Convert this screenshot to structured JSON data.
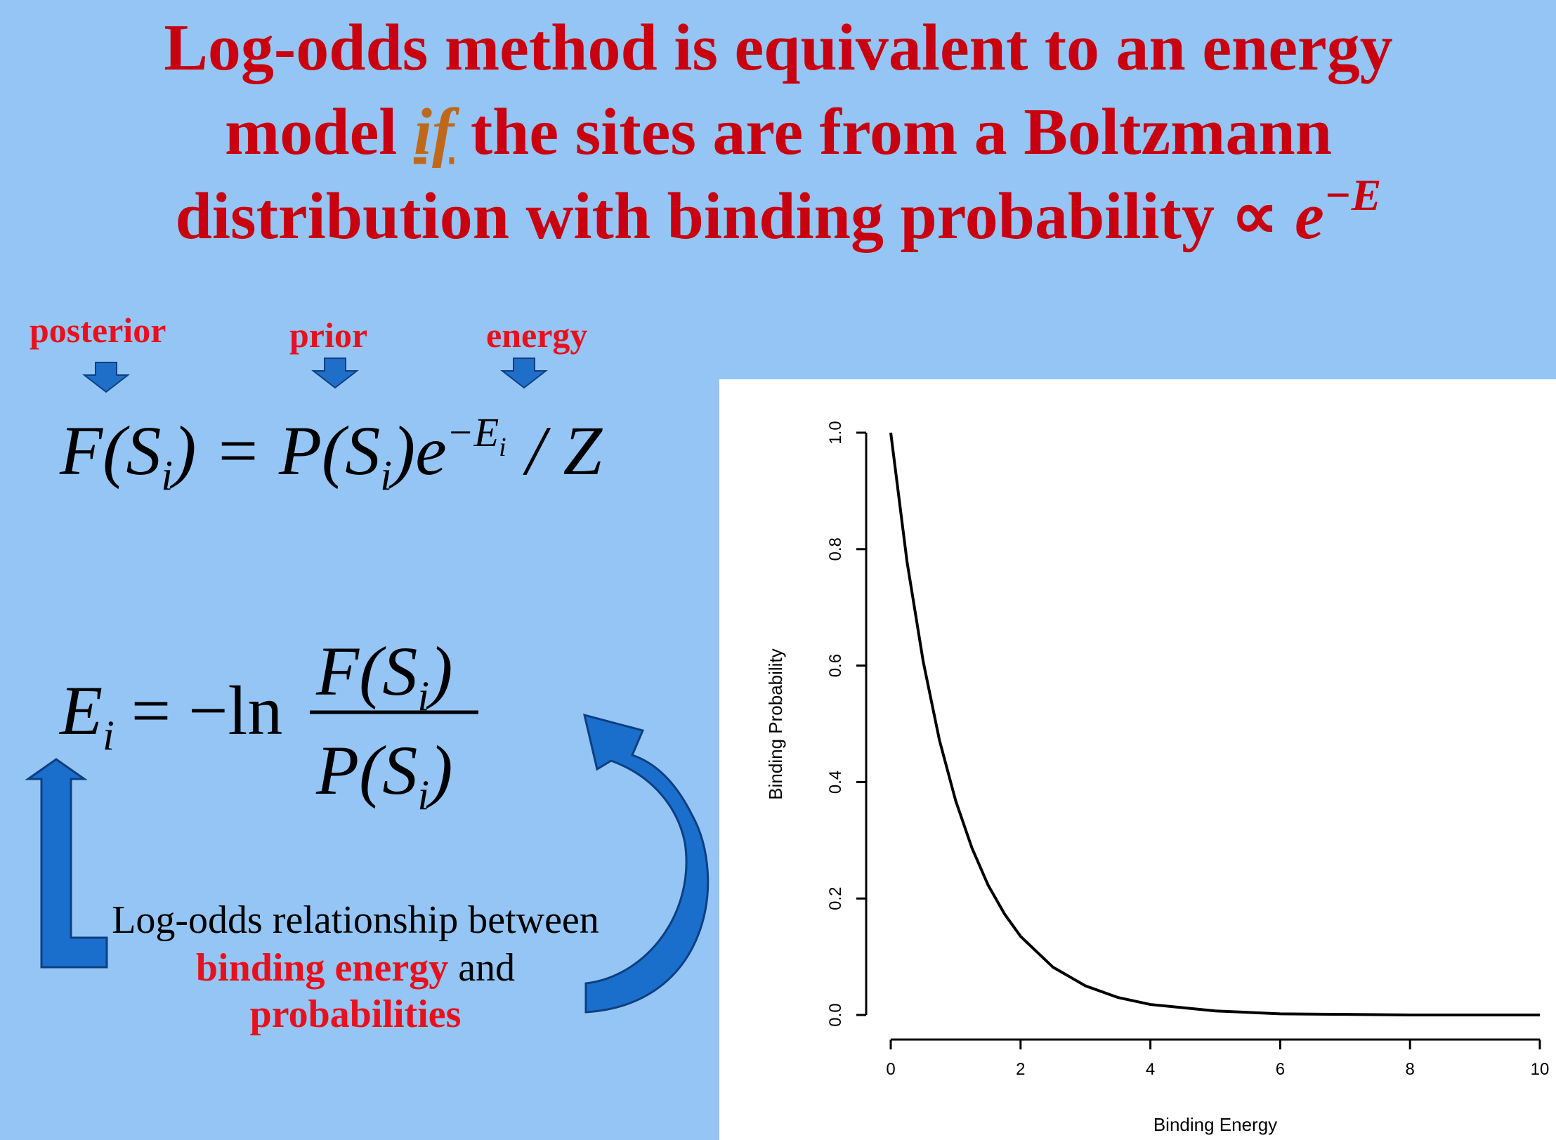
{
  "header": {
    "line1": "Log-odds method is equivalent to an energy",
    "line2_start": "model",
    "if": "if",
    "line2_end": "the sites are from a Boltzmann",
    "line3": "distribution with binding probability ∝",
    "e": "e",
    "sup": "−E"
  },
  "labels": {
    "posterior": "posterior",
    "prior": "prior",
    "energy": "energy"
  },
  "equation1": {
    "lhs": "F(S",
    "lhs_sub": "i",
    "mid": ") = P(S",
    "mid_sub": "i",
    "exp_base": ")e",
    "exp": "−E",
    "exp_sub": "i",
    "tail": "/ Z"
  },
  "equation2": {
    "lhs": "E",
    "lhs_sub": "i",
    "op": "= −ln",
    "num": "F(S",
    "num_sub": "i",
    "num_end": ")",
    "den": "P(S",
    "den_sub": "i",
    "den_end": ")"
  },
  "caption": {
    "line1": "Log-odds relationship between",
    "red1": "binding energy",
    "and": "and",
    "red2": "probabilities"
  },
  "chart_data": {
    "type": "line",
    "xlabel": "Binding Energy",
    "ylabel": "Binding Probability",
    "x": [
      0,
      0.25,
      0.5,
      0.75,
      1,
      1.25,
      1.5,
      1.75,
      2,
      2.5,
      3,
      3.5,
      4,
      5,
      6,
      7,
      8,
      9,
      10
    ],
    "values": [
      1,
      0.779,
      0.607,
      0.472,
      0.368,
      0.287,
      0.223,
      0.174,
      0.135,
      0.082,
      0.05,
      0.03,
      0.018,
      0.007,
      0.002,
      0.001,
      0,
      0,
      0
    ],
    "color": "#000000",
    "xlim": [
      0,
      10
    ],
    "ylim": [
      0,
      1
    ],
    "xticks": [
      0,
      2,
      4,
      6,
      8,
      10
    ],
    "yticks": [
      {
        "value": 0,
        "label": "0.0"
      },
      0.2,
      0.4,
      0.6,
      0.8,
      {
        "value": 1,
        "label": "1.0"
      }
    ]
  }
}
